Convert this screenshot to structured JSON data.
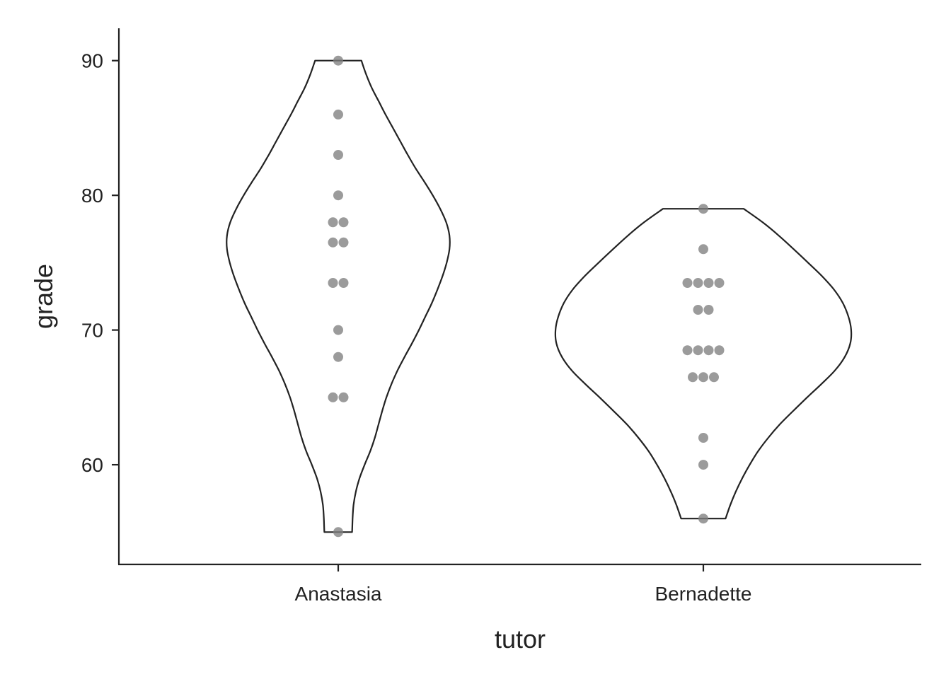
{
  "chart_data": {
    "type": "violin",
    "xlabel": "tutor",
    "ylabel": "grade",
    "ylim": [
      52.6,
      92.4
    ],
    "yticks": [
      60,
      70,
      80,
      90
    ],
    "grid": false,
    "categories": [
      "Anastasia",
      "Bernadette"
    ],
    "groups": [
      {
        "category": "Anastasia",
        "points": [
          55,
          65,
          65,
          68,
          70,
          73.5,
          73.5,
          76.5,
          76.5,
          78,
          78,
          80,
          83,
          86,
          90
        ],
        "density": [
          [
            55,
            0.3
          ],
          [
            56,
            0.31
          ],
          [
            57,
            0.33
          ],
          [
            58,
            0.38
          ],
          [
            59,
            0.46
          ],
          [
            60,
            0.57
          ],
          [
            61,
            0.69
          ],
          [
            62,
            0.79
          ],
          [
            63,
            0.87
          ],
          [
            64,
            0.95
          ],
          [
            65,
            1.04
          ],
          [
            66,
            1.15
          ],
          [
            67,
            1.28
          ],
          [
            68,
            1.43
          ],
          [
            69,
            1.59
          ],
          [
            70,
            1.74
          ],
          [
            71,
            1.88
          ],
          [
            72,
            2.02
          ],
          [
            73,
            2.14
          ],
          [
            74,
            2.25
          ],
          [
            75,
            2.34
          ],
          [
            76,
            2.4
          ],
          [
            77,
            2.4
          ],
          [
            78,
            2.33
          ],
          [
            79,
            2.2
          ],
          [
            80,
            2.04
          ],
          [
            81,
            1.86
          ],
          [
            82,
            1.67
          ],
          [
            83,
            1.5
          ],
          [
            84,
            1.34
          ],
          [
            85,
            1.18
          ],
          [
            86,
            1.02
          ],
          [
            87,
            0.87
          ],
          [
            88,
            0.72
          ],
          [
            89,
            0.6
          ],
          [
            90,
            0.5
          ]
        ]
      },
      {
        "category": "Bernadette",
        "points": [
          56,
          60,
          62,
          66.5,
          66.5,
          66.5,
          68.5,
          68.5,
          68.5,
          68.5,
          71.5,
          71.5,
          73.5,
          73.5,
          73.5,
          73.5,
          76,
          79
        ],
        "density": [
          [
            56,
            0.48
          ],
          [
            57,
            0.58
          ],
          [
            58,
            0.7
          ],
          [
            59,
            0.84
          ],
          [
            60,
            1.0
          ],
          [
            61,
            1.18
          ],
          [
            62,
            1.4
          ],
          [
            63,
            1.65
          ],
          [
            64,
            1.94
          ],
          [
            65,
            2.24
          ],
          [
            66,
            2.55
          ],
          [
            67,
            2.84
          ],
          [
            68,
            3.05
          ],
          [
            69,
            3.17
          ],
          [
            70,
            3.19
          ],
          [
            71,
            3.13
          ],
          [
            72,
            3.01
          ],
          [
            73,
            2.82
          ],
          [
            74,
            2.56
          ],
          [
            75,
            2.26
          ],
          [
            76,
            1.95
          ],
          [
            77,
            1.63
          ],
          [
            78,
            1.28
          ],
          [
            79,
            0.87
          ]
        ]
      }
    ]
  }
}
